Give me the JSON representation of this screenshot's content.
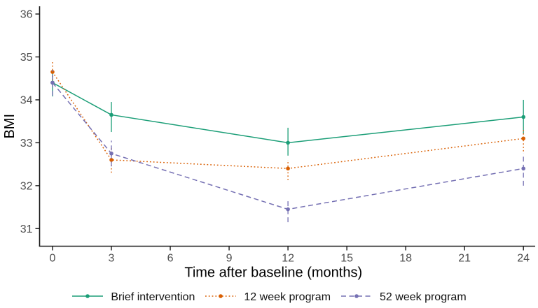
{
  "chart_data": {
    "type": "line",
    "title": "",
    "xlabel": "Time after baseline (months)",
    "ylabel": "BMI",
    "x": [
      0,
      3,
      12,
      24
    ],
    "x_ticks": [
      0,
      3,
      6,
      9,
      12,
      15,
      18,
      21,
      24
    ],
    "y_ticks": [
      31,
      32,
      33,
      34,
      35,
      36
    ],
    "xlim": [
      -0.66,
      24.6
    ],
    "ylim": [
      30.59,
      36.18
    ],
    "grid": false,
    "legend_position": "bottom",
    "error_bars": true,
    "marker": "circle",
    "series": [
      {
        "name": "Brief intervention",
        "color": "#1b9e77",
        "linestyle": "solid",
        "values": [
          34.4,
          33.65,
          33.0,
          33.6
        ],
        "ci_low": [
          34.08,
          33.25,
          32.7,
          33.2
        ],
        "ci_high": [
          34.7,
          33.95,
          33.35,
          34.0
        ]
      },
      {
        "name": "12 week program",
        "color": "#d95f02",
        "linestyle": "dotted",
        "values": [
          34.65,
          32.6,
          32.4,
          33.1
        ],
        "ci_low": [
          34.38,
          32.3,
          32.13,
          32.8
        ],
        "ci_high": [
          34.92,
          32.9,
          32.6,
          33.35
        ]
      },
      {
        "name": "52 week program",
        "color": "#7570b3",
        "linestyle": "dashed",
        "values": [
          34.4,
          32.75,
          31.45,
          32.4
        ],
        "ci_low": [
          34.1,
          32.45,
          31.15,
          32.0
        ],
        "ci_high": [
          34.7,
          33.05,
          31.65,
          32.75
        ]
      }
    ]
  },
  "colors": {
    "background": "#ffffff",
    "axis_line": "#1a1a1a",
    "tick_label": "#4d4d4d",
    "axis_title": "#000000"
  }
}
